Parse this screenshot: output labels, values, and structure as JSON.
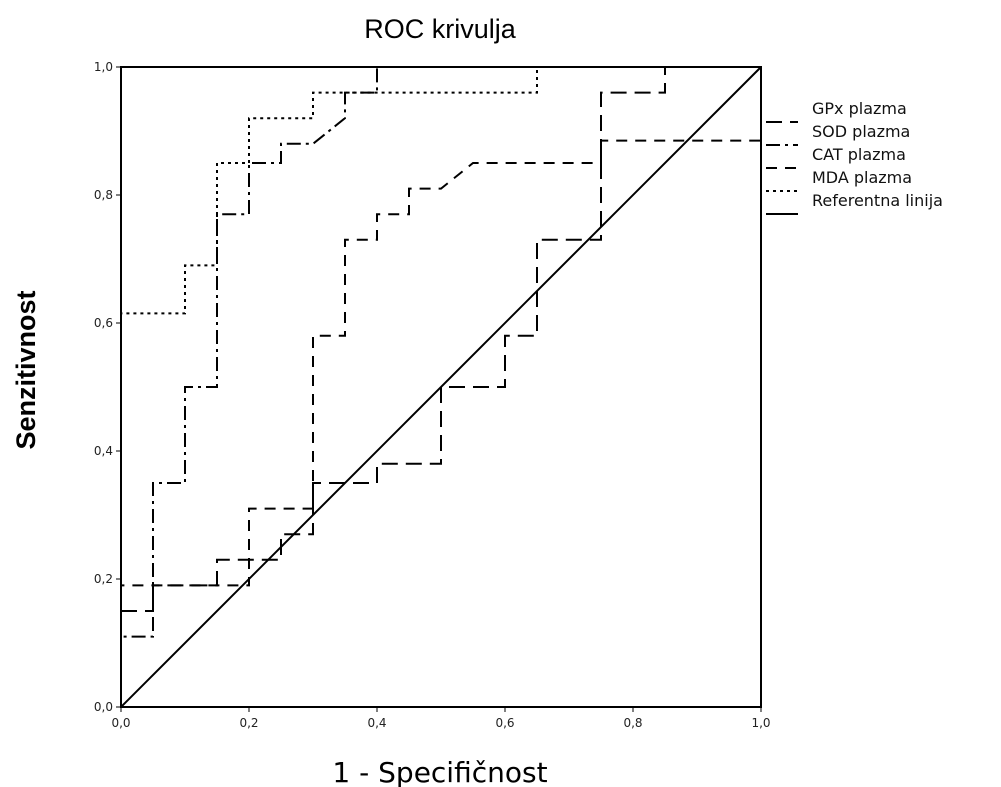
{
  "chart_data": {
    "type": "line",
    "title": "ROC krivulja",
    "xlabel": "1 - Specifičnost",
    "ylabel": "Senzitivnost",
    "xlim": [
      0,
      1
    ],
    "ylim": [
      0,
      1
    ],
    "x_ticks": [
      "0,0",
      "0,2",
      "0,4",
      "0,6",
      "0,8",
      "1,0"
    ],
    "y_ticks": [
      "0,0",
      "0,2",
      "0,4",
      "0,6",
      "0,8",
      "1,0"
    ],
    "grid": false,
    "legend_position": "right",
    "line_color": "#000000",
    "series": [
      {
        "name": "GPx plazma",
        "dash": "16,8",
        "points": [
          [
            0,
            0
          ],
          [
            0,
            0.15
          ],
          [
            0.05,
            0.15
          ],
          [
            0.05,
            0.19
          ],
          [
            0.15,
            0.19
          ],
          [
            0.15,
            0.23
          ],
          [
            0.25,
            0.23
          ],
          [
            0.25,
            0.27
          ],
          [
            0.3,
            0.27
          ],
          [
            0.3,
            0.35
          ],
          [
            0.4,
            0.35
          ],
          [
            0.4,
            0.38
          ],
          [
            0.5,
            0.38
          ],
          [
            0.5,
            0.5
          ],
          [
            0.6,
            0.5
          ],
          [
            0.6,
            0.58
          ],
          [
            0.65,
            0.58
          ],
          [
            0.65,
            0.73
          ],
          [
            0.75,
            0.73
          ],
          [
            0.75,
            0.96
          ],
          [
            0.85,
            0.96
          ],
          [
            0.85,
            1.0
          ],
          [
            1.0,
            1.0
          ]
        ]
      },
      {
        "name": "SOD plazma",
        "dash": "14,5,3,5",
        "points": [
          [
            0,
            0
          ],
          [
            0,
            0.11
          ],
          [
            0.05,
            0.11
          ],
          [
            0.05,
            0.35
          ],
          [
            0.1,
            0.35
          ],
          [
            0.1,
            0.5
          ],
          [
            0.15,
            0.5
          ],
          [
            0.15,
            0.77
          ],
          [
            0.2,
            0.77
          ],
          [
            0.2,
            0.85
          ],
          [
            0.25,
            0.85
          ],
          [
            0.25,
            0.88
          ],
          [
            0.3,
            0.88
          ],
          [
            0.35,
            0.92
          ],
          [
            0.35,
            0.96
          ],
          [
            0.4,
            0.96
          ],
          [
            0.4,
            1.0
          ],
          [
            1.0,
            1.0
          ]
        ]
      },
      {
        "name": "CAT plazma",
        "dash": "11,8",
        "points": [
          [
            0,
            0
          ],
          [
            0,
            0.19
          ],
          [
            0.2,
            0.19
          ],
          [
            0.2,
            0.31
          ],
          [
            0.3,
            0.31
          ],
          [
            0.3,
            0.58
          ],
          [
            0.35,
            0.58
          ],
          [
            0.35,
            0.73
          ],
          [
            0.4,
            0.73
          ],
          [
            0.4,
            0.77
          ],
          [
            0.45,
            0.77
          ],
          [
            0.45,
            0.81
          ],
          [
            0.5,
            0.81
          ],
          [
            0.55,
            0.85
          ],
          [
            0.75,
            0.85
          ],
          [
            0.75,
            0.885
          ],
          [
            1.0,
            0.885
          ]
        ]
      },
      {
        "name": "MDA plazma",
        "dash": "3,4",
        "points": [
          [
            0,
            0
          ],
          [
            0,
            0.615
          ],
          [
            0.1,
            0.615
          ],
          [
            0.1,
            0.69
          ],
          [
            0.15,
            0.69
          ],
          [
            0.15,
            0.85
          ],
          [
            0.2,
            0.85
          ],
          [
            0.2,
            0.92
          ],
          [
            0.3,
            0.92
          ],
          [
            0.3,
            0.96
          ],
          [
            0.65,
            0.96
          ],
          [
            0.65,
            1.0
          ],
          [
            1.0,
            1.0
          ]
        ]
      },
      {
        "name": "Referentna linija",
        "dash": "",
        "points": [
          [
            0,
            0
          ],
          [
            1,
            1
          ]
        ]
      }
    ]
  }
}
